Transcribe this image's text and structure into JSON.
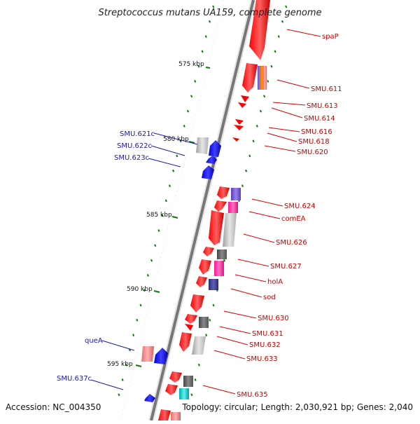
{
  "header": {
    "title": "Streptococcus mutans UA159, complete genome"
  },
  "footer": {
    "accession": "Accession: NC_004350",
    "summary": "Topology: circular; Length: 2,030,921 bp; Genes: 2,040"
  },
  "scale": {
    "ticks": [
      {
        "label": "575 kbp"
      },
      {
        "label": "580 kbp"
      },
      {
        "label": "585 kbp"
      },
      {
        "label": "590 kbp"
      },
      {
        "label": "595 kbp"
      }
    ]
  },
  "labels": {
    "plus_strand": [
      "spaP",
      "SMU.611",
      "SMU.613",
      "SMU.614",
      "SMU.616",
      "SMU.618",
      "SMU.620",
      "SMU.624",
      "comEA",
      "SMU.626",
      "SMU.627",
      "holA",
      "sod",
      "SMU.630",
      "SMU.631",
      "SMU.632",
      "SMU.633",
      "SMU.635"
    ],
    "minus_strand": [
      "SMU.621c",
      "SMU.622c",
      "SMU.623c",
      "queA",
      "SMU.637c"
    ]
  },
  "colors": {
    "backbone": "#7a7a7a",
    "plus_gene": "#ff0000",
    "minus_gene": "#0000ee",
    "plus_label": "#cc0000",
    "minus_label": "#1a1aaa",
    "tick": "#117711",
    "cog_purple": "#6a4fc8",
    "cog_magenta": "#ff1493",
    "cog_gray": "#c0c0c0",
    "cog_dark": "#555555",
    "cog_navy": "#3a3a8a",
    "cog_cyan": "#00c0c0",
    "cog_pink": "#f08080"
  }
}
